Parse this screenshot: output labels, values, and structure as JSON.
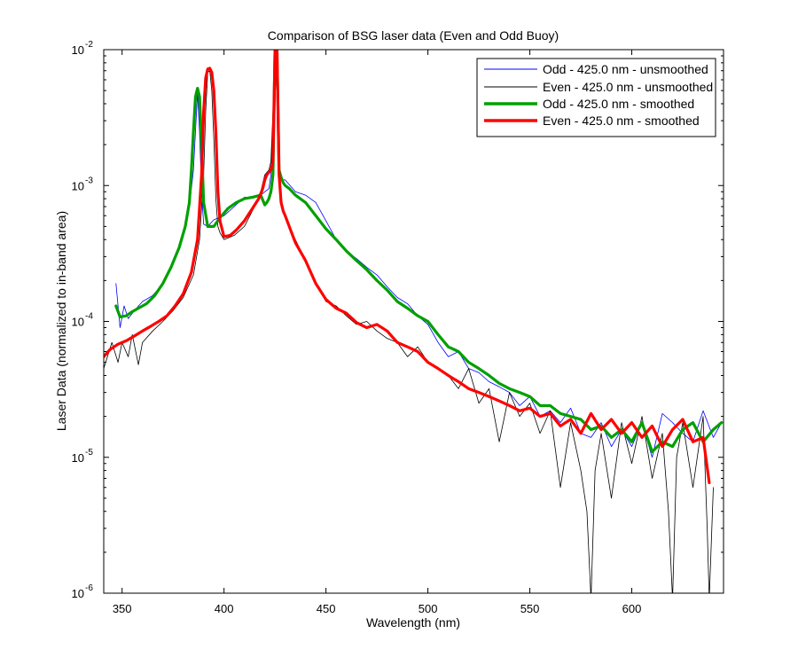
{
  "chart_data": {
    "type": "line",
    "title": "Comparison of BSG laser data (Even and Odd Buoy)",
    "xlabel": "Wavelength (nm)",
    "ylabel": "Laser Data (normalized to in-band area)",
    "xlim": [
      341,
      645
    ],
    "ylim": [
      1e-06,
      0.01
    ],
    "yscale": "log",
    "grid": false,
    "legend_position": "top-right",
    "xticks": [
      350,
      400,
      450,
      500,
      550,
      600
    ],
    "xtick_labels": [
      "350",
      "400",
      "450",
      "500",
      "550",
      "600"
    ],
    "yticks": [
      1e-06,
      1e-05,
      0.0001,
      0.001,
      0.01
    ],
    "ytick_labels": [
      {
        "base": "10",
        "exp": "-6"
      },
      {
        "base": "10",
        "exp": "-5"
      },
      {
        "base": "10",
        "exp": "-4"
      },
      {
        "base": "10",
        "exp": "-3"
      },
      {
        "base": "10",
        "exp": "-2"
      }
    ],
    "series": [
      {
        "name": "Odd - 425.0 nm - unsmoothed",
        "color": "#0000ff",
        "linewidth": 0.8,
        "x": [
          347,
          349,
          351,
          353,
          356,
          360,
          365,
          370,
          375,
          380,
          383,
          385,
          386,
          387,
          388,
          389,
          390,
          392,
          395,
          400,
          405,
          410,
          415,
          418,
          420,
          422,
          423,
          424,
          425,
          426,
          427,
          428,
          430,
          435,
          440,
          445,
          450,
          455,
          460,
          465,
          470,
          475,
          480,
          485,
          490,
          495,
          500,
          505,
          510,
          515,
          520,
          525,
          530,
          535,
          540,
          545,
          550,
          555,
          560,
          565,
          570,
          575,
          580,
          585,
          590,
          595,
          600,
          605,
          610,
          615,
          620,
          625,
          630,
          635,
          640,
          644
        ],
        "y": [
          0.00019,
          9e-05,
          0.00013,
          0.000105,
          0.00012,
          0.00014,
          0.000155,
          0.00019,
          0.00028,
          0.00042,
          0.0007,
          0.0013,
          0.0025,
          0.0048,
          0.0025,
          0.0009,
          0.00052,
          0.0005,
          0.00056,
          0.0006,
          0.0007,
          0.00082,
          0.00082,
          0.00085,
          0.0009,
          0.00095,
          0.0012,
          0.003,
          0.0098,
          0.0045,
          0.0013,
          0.0011,
          0.0011,
          0.0009,
          0.00085,
          0.00075,
          0.00055,
          0.0004,
          0.00033,
          0.00029,
          0.00025,
          0.00022,
          0.00018,
          0.00015,
          0.000135,
          0.00011,
          9.5e-05,
          7e-05,
          5.5e-05,
          6e-05,
          4.5e-05,
          4.2e-05,
          3.6e-05,
          3.3e-05,
          3e-05,
          2.4e-05,
          2.8e-05,
          2e-05,
          2.2e-05,
          1.8e-05,
          2.3e-05,
          1.5e-05,
          1.4e-05,
          1.8e-05,
          1.2e-05,
          1.6e-05,
          1.2e-05,
          1.8e-05,
          1e-05,
          2.1e-05,
          1.8e-05,
          1.5e-05,
          1.3e-05,
          2.2e-05,
          1.4e-05,
          1.8e-05
        ]
      },
      {
        "name": "Even - 425.0 nm - unsmoothed",
        "color": "#000000",
        "linewidth": 0.8,
        "x": [
          341,
          345,
          348,
          350,
          353,
          355,
          358,
          360,
          365,
          370,
          375,
          380,
          385,
          388,
          390,
          391,
          392,
          393,
          394,
          395,
          396,
          397,
          398,
          400,
          405,
          410,
          415,
          418,
          420,
          422,
          423,
          424,
          425,
          426,
          427,
          428,
          430,
          435,
          440,
          445,
          450,
          455,
          460,
          465,
          470,
          475,
          480,
          485,
          490,
          495,
          500,
          505,
          510,
          515,
          520,
          525,
          530,
          535,
          540,
          545,
          550,
          555,
          560,
          565,
          570,
          575,
          578,
          580,
          582,
          585,
          590,
          595,
          600,
          605,
          610,
          615,
          618,
          620,
          622,
          625,
          630,
          635,
          637,
          638,
          640
        ],
        "y": [
          4.5e-05,
          7e-05,
          5e-05,
          7e-05,
          5.5e-05,
          8e-05,
          4.8e-05,
          7e-05,
          8.5e-05,
          0.0001,
          0.00012,
          0.00015,
          0.00022,
          0.0004,
          0.0012,
          0.0035,
          0.0068,
          0.007,
          0.005,
          0.0022,
          0.0008,
          0.0005,
          0.00045,
          0.0004,
          0.00043,
          0.0005,
          0.0007,
          0.0009,
          0.0012,
          0.0013,
          0.0015,
          0.0035,
          0.0098,
          0.004,
          0.0011,
          0.0008,
          0.0006,
          0.0004,
          0.00028,
          0.00019,
          0.00014,
          0.00013,
          0.00011,
          9.5e-05,
          0.0001,
          8.5e-05,
          7.5e-05,
          7e-05,
          5.5e-05,
          6.5e-05,
          5e-05,
          4.5e-05,
          4e-05,
          3.2e-05,
          4.5e-05,
          2.5e-05,
          3.2e-05,
          1.3e-05,
          3e-05,
          2e-05,
          2.5e-05,
          1.5e-05,
          2.2e-05,
          6e-06,
          1.8e-05,
          8e-06,
          4e-06,
          9e-07,
          8e-06,
          1.5e-05,
          5e-06,
          1.8e-05,
          9e-06,
          2e-05,
          7e-06,
          1.5e-05,
          4e-06,
          9e-07,
          1e-05,
          1.8e-05,
          6e-06,
          2e-05,
          3e-06,
          9e-07,
          6e-06
        ]
      },
      {
        "name": "Odd - 425.0 nm - smoothed",
        "color": "#00a000",
        "linewidth": 3.2,
        "x": [
          347,
          349,
          352,
          355,
          358,
          362,
          366,
          370,
          374,
          378,
          381,
          383,
          384,
          385,
          386,
          387,
          388,
          389,
          390,
          392,
          395,
          398,
          402,
          406,
          410,
          414,
          418,
          420,
          421,
          422,
          423,
          424,
          425,
          426,
          427,
          428,
          429,
          430,
          432,
          435,
          440,
          445,
          450,
          455,
          460,
          465,
          470,
          475,
          480,
          485,
          490,
          495,
          500,
          505,
          510,
          515,
          520,
          525,
          530,
          535,
          540,
          545,
          550,
          555,
          560,
          565,
          570,
          575,
          580,
          585,
          590,
          595,
          600,
          605,
          610,
          615,
          620,
          625,
          630,
          635,
          640,
          644
        ],
        "y": [
          0.00013,
          0.000108,
          0.00011,
          0.000118,
          0.000125,
          0.000135,
          0.000155,
          0.00019,
          0.00025,
          0.00035,
          0.0005,
          0.00075,
          0.0013,
          0.0025,
          0.0045,
          0.0052,
          0.0045,
          0.002,
          0.00075,
          0.0005,
          0.0005,
          0.00058,
          0.00068,
          0.00075,
          0.0008,
          0.00082,
          0.00085,
          0.00072,
          0.00075,
          0.0008,
          0.0009,
          0.0012,
          0.0098,
          0.0098,
          0.0013,
          0.00115,
          0.00105,
          0.001,
          0.00095,
          0.00085,
          0.00075,
          0.0006,
          0.00048,
          0.0004,
          0.00033,
          0.00028,
          0.00024,
          0.0002,
          0.00017,
          0.00014,
          0.000125,
          0.00011,
          0.0001,
          8e-05,
          6.5e-05,
          6e-05,
          5e-05,
          4.5e-05,
          4e-05,
          3.5e-05,
          3.2e-05,
          3e-05,
          2.8e-05,
          2.4e-05,
          2.4e-05,
          2.1e-05,
          2e-05,
          1.9e-05,
          1.6e-05,
          1.7e-05,
          1.4e-05,
          1.6e-05,
          1.3e-05,
          1.8e-05,
          1.1e-05,
          1.3e-05,
          1.2e-05,
          1.6e-05,
          1.8e-05,
          1.3e-05,
          1.6e-05,
          1.8e-05
        ]
      },
      {
        "name": "Even - 425.0 nm - smoothed",
        "color": "#ff0000",
        "linewidth": 3.2,
        "x": [
          341,
          344,
          348,
          352,
          356,
          360,
          364,
          368,
          372,
          376,
          380,
          384,
          387,
          389,
          390,
          391,
          392,
          393,
          394,
          395,
          396,
          397,
          398,
          400,
          403,
          406,
          410,
          414,
          417,
          419,
          420,
          421,
          422,
          423,
          424,
          425,
          426,
          427,
          428,
          429,
          430,
          432,
          435,
          440,
          445,
          450,
          455,
          460,
          465,
          470,
          475,
          480,
          485,
          490,
          495,
          500,
          505,
          510,
          515,
          520,
          525,
          530,
          535,
          540,
          545,
          550,
          555,
          560,
          565,
          570,
          575,
          580,
          585,
          590,
          595,
          600,
          605,
          610,
          615,
          620,
          625,
          630,
          635,
          638
        ],
        "y": [
          5.5e-05,
          6.2e-05,
          6.8e-05,
          7.2e-05,
          7.8e-05,
          8.5e-05,
          9.2e-05,
          0.0001,
          0.00011,
          0.00013,
          0.00016,
          0.00023,
          0.0004,
          0.0012,
          0.0035,
          0.0062,
          0.0072,
          0.0073,
          0.0068,
          0.005,
          0.0025,
          0.0009,
          0.00055,
          0.00042,
          0.00043,
          0.00047,
          0.00055,
          0.00068,
          0.0008,
          0.00095,
          0.0011,
          0.0012,
          0.00125,
          0.0013,
          0.0015,
          0.0098,
          0.0098,
          0.0012,
          0.00075,
          0.00065,
          0.0006,
          0.0005,
          0.00038,
          0.00028,
          0.00019,
          0.000145,
          0.000125,
          0.000115,
          9.8e-05,
          9e-05,
          9.5e-05,
          8.5e-05,
          7e-05,
          6.5e-05,
          6e-05,
          5e-05,
          4.5e-05,
          4e-05,
          3.6e-05,
          3.2e-05,
          3e-05,
          2.8e-05,
          2.6e-05,
          2.4e-05,
          2.2e-05,
          2.3e-05,
          2e-05,
          2.1e-05,
          1.7e-05,
          1.9e-05,
          1.5e-05,
          2.1e-05,
          1.6e-05,
          1.9e-05,
          1.5e-05,
          1.8e-05,
          1.4e-05,
          1.7e-05,
          1.2e-05,
          1.6e-05,
          1.9e-05,
          1.3e-05,
          1.4e-05,
          6.5e-06
        ]
      }
    ]
  }
}
